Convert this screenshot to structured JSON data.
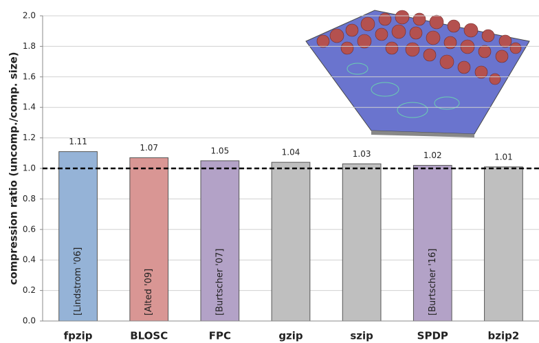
{
  "chart_data": {
    "type": "bar",
    "ylabel": "compression ratio (uncomp./comp. size)",
    "categories": [
      "fpzip",
      "BLOSC",
      "FPC",
      "gzip",
      "szip",
      "SPDP",
      "bzip2"
    ],
    "values": [
      1.11,
      1.07,
      1.05,
      1.04,
      1.03,
      1.02,
      1.01
    ],
    "colors": [
      "#95b3d7",
      "#d99694",
      "#b3a2c7",
      "#bfbfbf",
      "#bfbfbf",
      "#b3a2c7",
      "#bfbfbf"
    ],
    "annotations": [
      "[Lindstrom '06]",
      "[Alted '09]",
      "[Burtscher '07]",
      null,
      null,
      "[Burtscher '16]",
      null
    ],
    "reference_line": 1.0,
    "ylim": [
      0,
      2
    ],
    "yticks": [
      {
        "value": 0,
        "label": "0.0"
      },
      0.2,
      0.4,
      0.6,
      0.8,
      {
        "value": 1,
        "label": "1.0"
      },
      1.2,
      1.4,
      1.6,
      1.8,
      {
        "value": 2,
        "label": "2.0"
      }
    ],
    "grid": true
  }
}
